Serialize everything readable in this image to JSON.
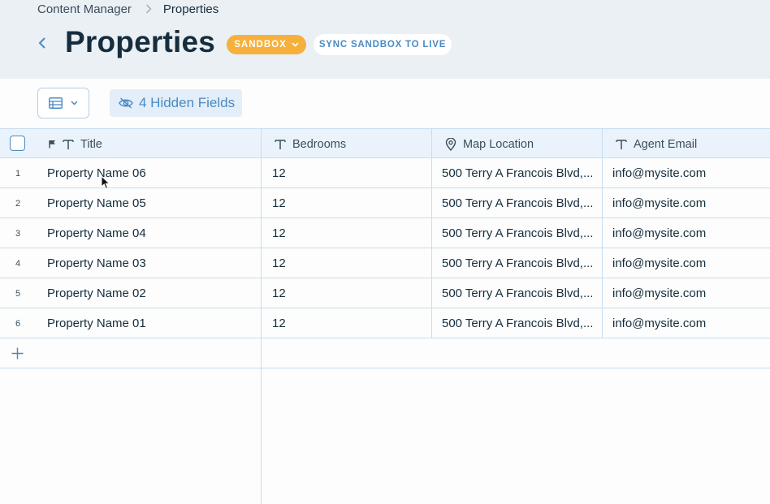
{
  "breadcrumb": {
    "parent": "Content Manager",
    "current": "Properties"
  },
  "page": {
    "title": "Properties"
  },
  "badges": {
    "sandbox": "SANDBOX",
    "sync": "SYNC SANDBOX TO LIVE"
  },
  "toolbar": {
    "hidden_fields": "4 Hidden Fields"
  },
  "columns": {
    "title": "Title",
    "bedrooms": "Bedrooms",
    "map_location": "Map Location",
    "agent_email": "Agent Email"
  },
  "rows": [
    {
      "num": "1",
      "title": "Property Name 06",
      "bedrooms": "12",
      "location": "500 Terry A Francois Blvd,...",
      "email": "info@mysite.com"
    },
    {
      "num": "2",
      "title": "Property Name 05",
      "bedrooms": "12",
      "location": "500 Terry A Francois Blvd,...",
      "email": "info@mysite.com"
    },
    {
      "num": "3",
      "title": "Property Name 04",
      "bedrooms": "12",
      "location": "500 Terry A Francois Blvd,...",
      "email": "info@mysite.com"
    },
    {
      "num": "4",
      "title": "Property Name 03",
      "bedrooms": "12",
      "location": "500 Terry A Francois Blvd,...",
      "email": "info@mysite.com"
    },
    {
      "num": "5",
      "title": "Property Name 02",
      "bedrooms": "12",
      "location": "500 Terry A Francois Blvd,...",
      "email": "info@mysite.com"
    },
    {
      "num": "6",
      "title": "Property Name 01",
      "bedrooms": "12",
      "location": "500 Terry A Francois Blvd,...",
      "email": "info@mysite.com"
    }
  ],
  "icons": {
    "back": "chevron-left-icon",
    "sandbox_dropdown": "chevron-down-icon",
    "view": "table-view-icon",
    "hidden": "eye-off-icon",
    "primary": "flag-icon",
    "text_type": "text-type-icon",
    "location_type": "map-pin-icon",
    "add": "plus-icon"
  },
  "colors": {
    "accent": "#4a8ac2",
    "sandbox": "#f7b03c",
    "header_bg": "#ebf0f5",
    "grid_header_bg": "#eaf3fc",
    "text": "#162d3d"
  }
}
